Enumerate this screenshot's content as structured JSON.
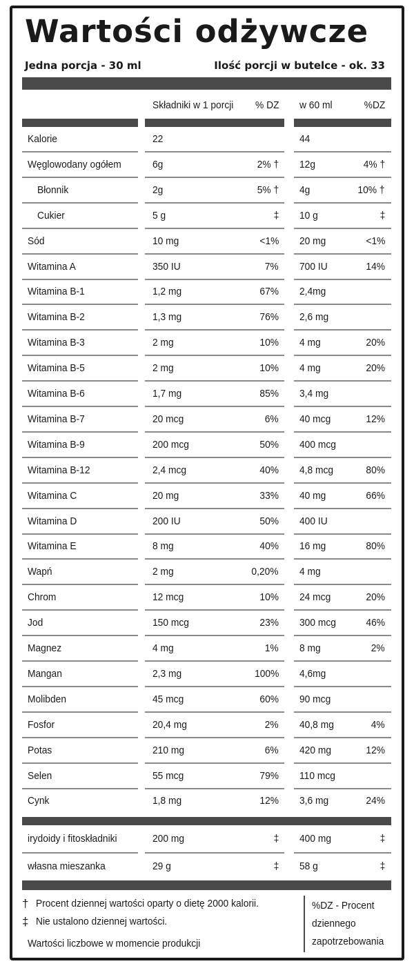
{
  "title": "Wartości odżywcze",
  "serving": {
    "portion": "Jedna porcja - 30 ml",
    "per_bottle": "Ilość porcji w butelce - ok. 33"
  },
  "columns": {
    "per_serving": "Składniki w 1 porcji",
    "dv1": "% DZ",
    "per_60ml": "w 60 ml",
    "dv2": "%DZ"
  },
  "rows": [
    {
      "name": "Kalorie",
      "v1": "22",
      "p1": "",
      "v2": "44",
      "p2": ""
    },
    {
      "name": "Węglowodany ogółem",
      "v1": "6g",
      "p1": "2% †",
      "v2": "12g",
      "p2": "4% †"
    },
    {
      "name": "Błonnik",
      "v1": "2g",
      "p1": "5% †",
      "v2": "4g",
      "p2": "10% †",
      "indent": true
    },
    {
      "name": "Cukier",
      "v1": "5 g",
      "p1": "‡",
      "v2": "10 g",
      "p2": "‡",
      "indent": true
    },
    {
      "name": "Sód",
      "v1": "10 mg",
      "p1": "<1%",
      "v2": "20 mg",
      "p2": "<1%"
    },
    {
      "name": "Witamina A",
      "v1": "350 IU",
      "p1": "7%",
      "v2": "700 IU",
      "p2": "14%"
    },
    {
      "name": "Witamina B-1",
      "v1": "1,2 mg",
      "p1": "67%",
      "v2": "2,4mg",
      "p2": ""
    },
    {
      "name": "Witamina B-2",
      "v1": "1,3 mg",
      "p1": "76%",
      "v2": "2,6 mg",
      "p2": ""
    },
    {
      "name": "Witamina B-3",
      "v1": "2 mg",
      "p1": "10%",
      "v2": "4 mg",
      "p2": "20%"
    },
    {
      "name": "Witamina B-5",
      "v1": "2 mg",
      "p1": "10%",
      "v2": "4 mg",
      "p2": "20%"
    },
    {
      "name": "Witamina B-6",
      "v1": "1,7 mg",
      "p1": "85%",
      "v2": "3,4 mg",
      "p2": ""
    },
    {
      "name": "Witamina B-7",
      "v1": "20 mcg",
      "p1": "6%",
      "v2": "40 mcg",
      "p2": "12%"
    },
    {
      "name": "Witamina B-9",
      "v1": "200 mcg",
      "p1": "50%",
      "v2": "400 mcg",
      "p2": ""
    },
    {
      "name": "Witamina B-12",
      "v1": "2,4 mcg",
      "p1": "40%",
      "v2": "4,8 mcg",
      "p2": "80%"
    },
    {
      "name": "Witamina C",
      "v1": "20 mg",
      "p1": "33%",
      "v2": "40 mg",
      "p2": "66%"
    },
    {
      "name": "Witamina D",
      "v1": "200 IU",
      "p1": "50%",
      "v2": "400 IU",
      "p2": ""
    },
    {
      "name": "Witamina E",
      "v1": "8 mg",
      "p1": "40%",
      "v2": "16 mg",
      "p2": "80%"
    },
    {
      "name": "Wapń",
      "v1": "2 mg",
      "p1": "0,20%",
      "v2": "4 mg",
      "p2": ""
    },
    {
      "name": "Chrom",
      "v1": "12 mcg",
      "p1": "10%",
      "v2": "24 mcg",
      "p2": "20%"
    },
    {
      "name": "Jod",
      "v1": "150 mcg",
      "p1": "23%",
      "v2": "300 mcg",
      "p2": "46%"
    },
    {
      "name": "Magnez",
      "v1": "4 mg",
      "p1": "1%",
      "v2": "8 mg",
      "p2": "2%"
    },
    {
      "name": "Mangan",
      "v1": "2,3 mg",
      "p1": "100%",
      "v2": "4,6mg",
      "p2": ""
    },
    {
      "name": "Molibden",
      "v1": "45 mcg",
      "p1": "60%",
      "v2": "90 mcg",
      "p2": ""
    },
    {
      "name": "Fosfor",
      "v1": "20,4 mg",
      "p1": "2%",
      "v2": "40,8 mg",
      "p2": "4%"
    },
    {
      "name": "Potas",
      "v1": "210 mg",
      "p1": "6%",
      "v2": "420 mg",
      "p2": "12%"
    },
    {
      "name": "Selen",
      "v1": "55 mcg",
      "p1": "79%",
      "v2": "110 mcg",
      "p2": ""
    },
    {
      "name": "Cynk",
      "v1": "1,8 mg",
      "p1": "12%",
      "v2": "3,6 mg",
      "p2": "24%"
    }
  ],
  "extra_rows": [
    {
      "name": "irydoidy i fitoskładniki",
      "v1": "200 mg",
      "p1": "‡",
      "v2": "400 mg",
      "p2": "‡"
    },
    {
      "name": "własna mieszanka",
      "v1": "29 g",
      "p1": "‡",
      "v2": "58 g",
      "p2": "‡"
    }
  ],
  "footnotes": {
    "dagger_symbol": "†",
    "dagger_text": "Procent dziennej wartości oparty o dietę 2000 kalorii.",
    "ddagger_symbol": "‡",
    "ddagger_text": "Nie ustalono dziennej wartości.",
    "production_note": "Wartości liczbowe w momencie produkcji",
    "dz_legend_1": "%DZ - Procent",
    "dz_legend_2": "dziennego",
    "dz_legend_3": "zapotrzebowania"
  }
}
